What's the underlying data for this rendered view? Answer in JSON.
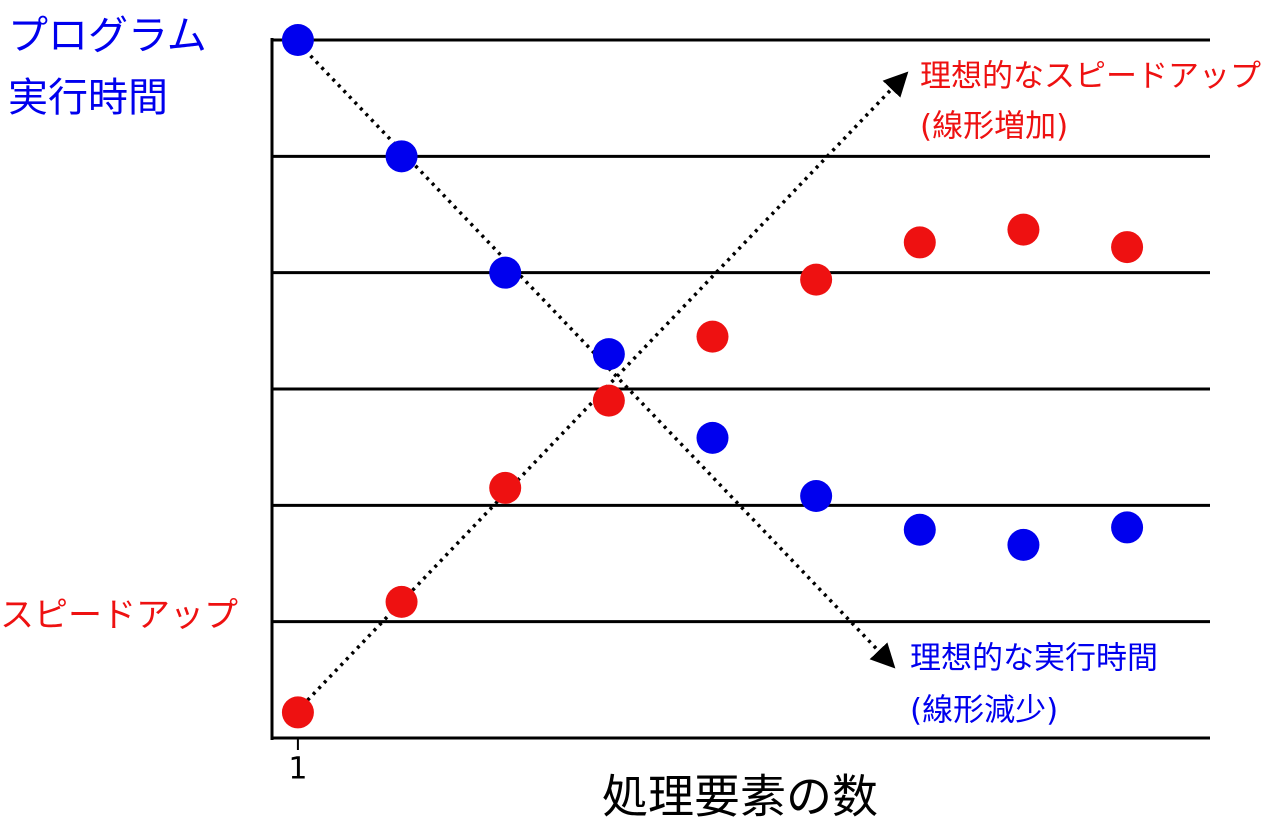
{
  "chart_data": {
    "type": "scatter",
    "y_label_lines": [
      "プログラム",
      "実行時間"
    ],
    "speedup_label": "スピードアップ",
    "x_label": "処理要素の数",
    "xlim": [
      0.75,
      9.8
    ],
    "xticks": [
      1
    ],
    "ylim": [
      0,
      6
    ],
    "yticks": [
      0,
      1,
      2,
      3,
      4,
      5,
      6
    ],
    "ytick_labels": false,
    "grid": true,
    "x": [
      1,
      2,
      3,
      4,
      5,
      6,
      7,
      8,
      9
    ],
    "series": [
      {
        "color": "#0000ee",
        "values": [
          6.0,
          5.0,
          4.0,
          3.3,
          2.58,
          2.08,
          1.79,
          1.66,
          1.81
        ]
      },
      {
        "color": "#ee1111",
        "values": [
          0.22,
          1.17,
          2.15,
          2.9,
          3.45,
          3.94,
          4.26,
          4.37,
          4.22
        ]
      }
    ],
    "annotations": [
      {
        "lines": [
          "理想的なスピードアップ",
          "(線形増加)"
        ],
        "color": "#ee1111"
      },
      {
        "lines": [
          "理想的な実行時間",
          "(線形減少)"
        ],
        "color": "#0000ee"
      }
    ]
  }
}
